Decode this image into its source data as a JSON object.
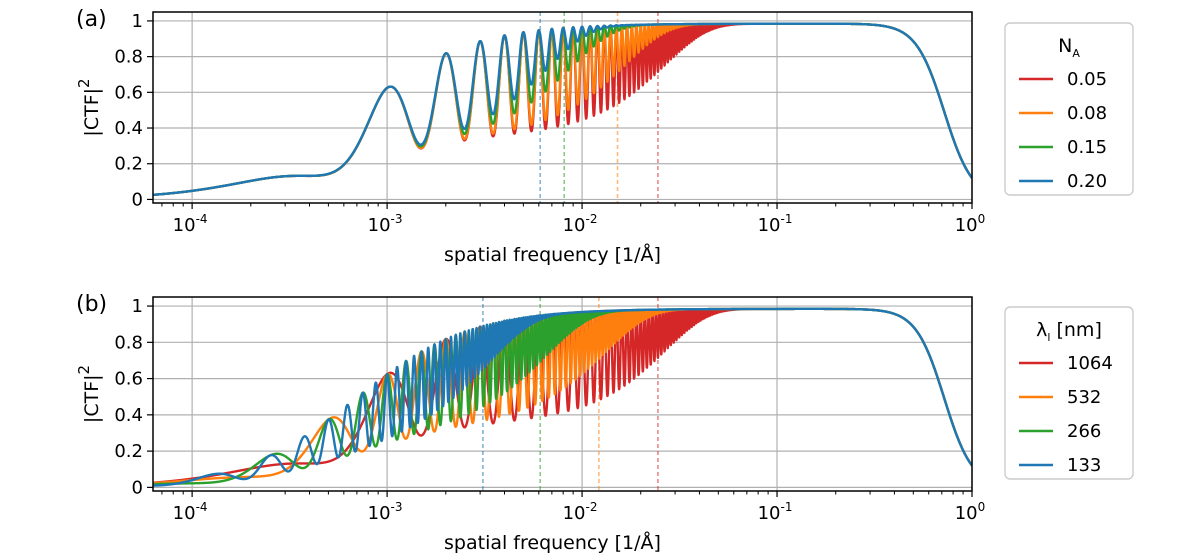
{
  "chart_data": [
    {
      "panel_label": "(a)",
      "type": "line",
      "xscale": "log",
      "xlim": [
        6.3e-05,
        1
      ],
      "ylim": [
        -0.02,
        1.05
      ],
      "x_ticks": [
        {
          "value": 0.0001,
          "base": "10",
          "exp": "-4"
        },
        {
          "value": 0.001,
          "base": "10",
          "exp": "-3"
        },
        {
          "value": 0.01,
          "base": "10",
          "exp": "-2"
        },
        {
          "value": 0.1,
          "base": "10",
          "exp": "-1"
        },
        {
          "value": 1,
          "base": "10",
          "exp": "0"
        }
      ],
      "y_ticks": [
        {
          "value": 0,
          "label": "0"
        },
        {
          "value": 0.2,
          "label": "0.2"
        },
        {
          "value": 0.4,
          "label": "0.4"
        },
        {
          "value": 0.6,
          "label": "0.6"
        },
        {
          "value": 0.8,
          "label": "0.8"
        },
        {
          "value": 1,
          "label": "1"
        }
      ],
      "xlabel": "spatial frequency [1/Å]",
      "ylabel": {
        "base": "|CTF|",
        "sup": "2"
      },
      "grid": true,
      "legend": {
        "title_base": "N",
        "title_sub": "A",
        "placement": "outside-right"
      },
      "series": [
        {
          "name": "0.05",
          "color": "#d62728",
          "na": 0.05,
          "lambda": 1064,
          "cutoff": 0.0245
        },
        {
          "name": "0.08",
          "color": "#ff7f0e",
          "na": 0.08,
          "lambda": 1064,
          "cutoff": 0.0152
        },
        {
          "name": "0.15",
          "color": "#2ca02c",
          "na": 0.15,
          "lambda": 1064,
          "cutoff": 0.0081
        },
        {
          "name": "0.20",
          "color": "#1f77b4",
          "na": 0.2,
          "lambda": 1064,
          "cutoff": 0.0061
        }
      ]
    },
    {
      "panel_label": "(b)",
      "type": "line",
      "xscale": "log",
      "xlim": [
        6.3e-05,
        1
      ],
      "ylim": [
        -0.02,
        1.05
      ],
      "x_ticks": [
        {
          "value": 0.0001,
          "base": "10",
          "exp": "-4"
        },
        {
          "value": 0.001,
          "base": "10",
          "exp": "-3"
        },
        {
          "value": 0.01,
          "base": "10",
          "exp": "-2"
        },
        {
          "value": 0.1,
          "base": "10",
          "exp": "-1"
        },
        {
          "value": 1,
          "base": "10",
          "exp": "0"
        }
      ],
      "y_ticks": [
        {
          "value": 0,
          "label": "0"
        },
        {
          "value": 0.2,
          "label": "0.2"
        },
        {
          "value": 0.4,
          "label": "0.4"
        },
        {
          "value": 0.6,
          "label": "0.6"
        },
        {
          "value": 0.8,
          "label": "0.8"
        },
        {
          "value": 1,
          "label": "1"
        }
      ],
      "xlabel": "spatial frequency [1/Å]",
      "ylabel": {
        "base": "|CTF|",
        "sup": "2"
      },
      "grid": true,
      "legend": {
        "title_base": "λ",
        "title_sub": "l",
        "title_rest": " [nm]",
        "placement": "outside-right"
      },
      "series": [
        {
          "name": "1064",
          "color": "#d62728",
          "na": 0.05,
          "lambda": 1064,
          "cutoff": 0.0245
        },
        {
          "name": "532",
          "color": "#ff7f0e",
          "na": 0.05,
          "lambda": 532,
          "cutoff": 0.0122
        },
        {
          "name": "266",
          "color": "#2ca02c",
          "na": 0.05,
          "lambda": 266,
          "cutoff": 0.0061
        },
        {
          "name": "133",
          "color": "#1f77b4",
          "na": 0.05,
          "lambda": 133,
          "cutoff": 0.0031
        }
      ]
    }
  ]
}
